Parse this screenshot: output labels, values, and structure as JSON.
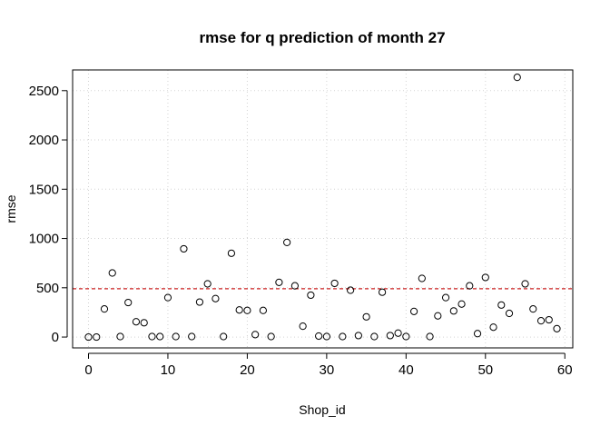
{
  "chart_data": {
    "type": "scatter",
    "title": "rmse for q prediction of month 27",
    "xlabel": "Shop_id",
    "ylabel": "rmse",
    "xlim": [
      -2,
      61
    ],
    "ylim": [
      -110,
      2710
    ],
    "x_ticks": [
      0,
      10,
      20,
      30,
      40,
      50,
      60
    ],
    "y_ticks": [
      0,
      500,
      1000,
      1500,
      2000,
      2500
    ],
    "grid": true,
    "reference_line": {
      "y": 490,
      "style": "dashed",
      "color": "#cc2222"
    },
    "marker_color": "#000000",
    "points": [
      {
        "x": 0,
        "y": 0
      },
      {
        "x": 1,
        "y": 0
      },
      {
        "x": 2,
        "y": 285
      },
      {
        "x": 3,
        "y": 650
      },
      {
        "x": 4,
        "y": 5
      },
      {
        "x": 5,
        "y": 350
      },
      {
        "x": 6,
        "y": 155
      },
      {
        "x": 7,
        "y": 145
      },
      {
        "x": 8,
        "y": 5
      },
      {
        "x": 9,
        "y": 5
      },
      {
        "x": 10,
        "y": 400
      },
      {
        "x": 11,
        "y": 5
      },
      {
        "x": 12,
        "y": 895
      },
      {
        "x": 13,
        "y": 5
      },
      {
        "x": 14,
        "y": 355
      },
      {
        "x": 15,
        "y": 540
      },
      {
        "x": 16,
        "y": 390
      },
      {
        "x": 17,
        "y": 5
      },
      {
        "x": 18,
        "y": 850
      },
      {
        "x": 19,
        "y": 275
      },
      {
        "x": 20,
        "y": 270
      },
      {
        "x": 21,
        "y": 25
      },
      {
        "x": 22,
        "y": 270
      },
      {
        "x": 23,
        "y": 5
      },
      {
        "x": 24,
        "y": 555
      },
      {
        "x": 25,
        "y": 960
      },
      {
        "x": 26,
        "y": 520
      },
      {
        "x": 27,
        "y": 110
      },
      {
        "x": 28,
        "y": 425
      },
      {
        "x": 29,
        "y": 10
      },
      {
        "x": 30,
        "y": 5
      },
      {
        "x": 31,
        "y": 545
      },
      {
        "x": 32,
        "y": 5
      },
      {
        "x": 33,
        "y": 475
      },
      {
        "x": 34,
        "y": 15
      },
      {
        "x": 35,
        "y": 205
      },
      {
        "x": 36,
        "y": 5
      },
      {
        "x": 37,
        "y": 455
      },
      {
        "x": 38,
        "y": 15
      },
      {
        "x": 39,
        "y": 40
      },
      {
        "x": 40,
        "y": 5
      },
      {
        "x": 41,
        "y": 260
      },
      {
        "x": 42,
        "y": 595
      },
      {
        "x": 43,
        "y": 5
      },
      {
        "x": 44,
        "y": 215
      },
      {
        "x": 45,
        "y": 400
      },
      {
        "x": 46,
        "y": 265
      },
      {
        "x": 47,
        "y": 335
      },
      {
        "x": 48,
        "y": 520
      },
      {
        "x": 49,
        "y": 35
      },
      {
        "x": 50,
        "y": 605
      },
      {
        "x": 51,
        "y": 100
      },
      {
        "x": 52,
        "y": 325
      },
      {
        "x": 53,
        "y": 240
      },
      {
        "x": 54,
        "y": 2635
      },
      {
        "x": 55,
        "y": 540
      },
      {
        "x": 56,
        "y": 285
      },
      {
        "x": 57,
        "y": 165
      },
      {
        "x": 58,
        "y": 175
      },
      {
        "x": 59,
        "y": 85
      }
    ]
  }
}
